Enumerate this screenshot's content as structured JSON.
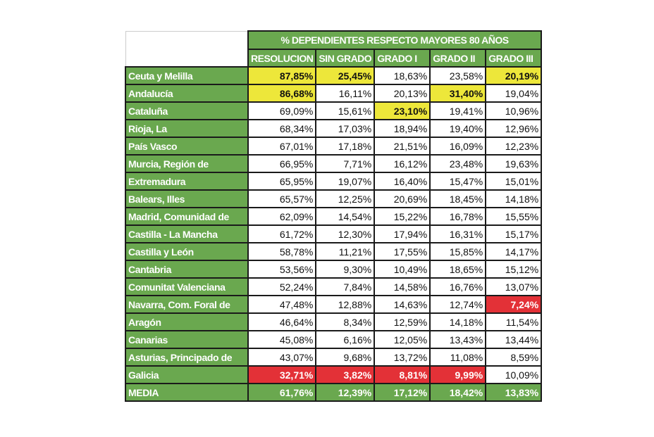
{
  "table": {
    "title": "% DEPENDIENTES RESPECTO MAYORES 80 AÑOS",
    "columns": [
      "RESOLUCION",
      "SIN GRADO",
      "GRADO I",
      "GRADO II",
      "GRADO III"
    ],
    "highlight_colors": {
      "yellow": "#ede73a",
      "red": "#e33137",
      "header_green": "#6aa84f"
    },
    "rows": [
      {
        "label": "Ceuta y Melilla",
        "values": [
          "87,85%",
          "25,45%",
          "18,63%",
          "23,58%",
          "20,19%"
        ],
        "highlight": [
          "yellow",
          "yellow",
          "",
          "",
          "yellow"
        ]
      },
      {
        "label": "Andalucía",
        "values": [
          "86,68%",
          "16,11%",
          "20,13%",
          "31,40%",
          "19,04%"
        ],
        "highlight": [
          "yellow",
          "",
          "",
          "yellow",
          ""
        ]
      },
      {
        "label": "Cataluña",
        "values": [
          "69,09%",
          "15,61%",
          "23,10%",
          "19,41%",
          "10,96%"
        ],
        "highlight": [
          "",
          "",
          "yellow",
          "",
          ""
        ]
      },
      {
        "label": "Rioja, La",
        "values": [
          "68,34%",
          "17,03%",
          "18,94%",
          "19,40%",
          "12,96%"
        ],
        "highlight": [
          "",
          "",
          "",
          "",
          ""
        ]
      },
      {
        "label": "País Vasco",
        "values": [
          "67,01%",
          "17,18%",
          "21,51%",
          "16,09%",
          "12,23%"
        ],
        "highlight": [
          "",
          "",
          "",
          "",
          ""
        ]
      },
      {
        "label": "Murcia, Región de",
        "values": [
          "66,95%",
          "7,71%",
          "16,12%",
          "23,48%",
          "19,63%"
        ],
        "highlight": [
          "",
          "",
          "",
          "",
          ""
        ]
      },
      {
        "label": "Extremadura",
        "values": [
          "65,95%",
          "19,07%",
          "16,40%",
          "15,47%",
          "15,01%"
        ],
        "highlight": [
          "",
          "",
          "",
          "",
          ""
        ]
      },
      {
        "label": "Balears, Illes",
        "values": [
          "65,57%",
          "12,25%",
          "20,69%",
          "18,45%",
          "14,18%"
        ],
        "highlight": [
          "",
          "",
          "",
          "",
          ""
        ]
      },
      {
        "label": "Madrid, Comunidad de",
        "values": [
          "62,09%",
          "14,54%",
          "15,22%",
          "16,78%",
          "15,55%"
        ],
        "highlight": [
          "",
          "",
          "",
          "",
          ""
        ]
      },
      {
        "label": "Castilla - La Mancha",
        "values": [
          "61,72%",
          "12,30%",
          "17,94%",
          "16,31%",
          "15,17%"
        ],
        "highlight": [
          "",
          "",
          "",
          "",
          ""
        ]
      },
      {
        "label": "Castilla y León",
        "values": [
          "58,78%",
          "11,21%",
          "17,55%",
          "15,85%",
          "14,17%"
        ],
        "highlight": [
          "",
          "",
          "",
          "",
          ""
        ]
      },
      {
        "label": "Cantabria",
        "values": [
          "53,56%",
          "9,30%",
          "10,49%",
          "18,65%",
          "15,12%"
        ],
        "highlight": [
          "",
          "",
          "",
          "",
          ""
        ]
      },
      {
        "label": "Comunitat Valenciana",
        "values": [
          "52,24%",
          "7,84%",
          "14,58%",
          "16,76%",
          "13,07%"
        ],
        "highlight": [
          "",
          "",
          "",
          "",
          ""
        ]
      },
      {
        "label": "Navarra, Com. Foral de",
        "values": [
          "47,48%",
          "12,88%",
          "14,63%",
          "12,74%",
          "7,24%"
        ],
        "highlight": [
          "",
          "",
          "",
          "",
          "red"
        ]
      },
      {
        "label": "Aragón",
        "values": [
          "46,64%",
          "8,34%",
          "12,59%",
          "14,18%",
          "11,54%"
        ],
        "highlight": [
          "",
          "",
          "",
          "",
          ""
        ]
      },
      {
        "label": "Canarias",
        "values": [
          "45,08%",
          "6,16%",
          "12,05%",
          "13,43%",
          "13,44%"
        ],
        "highlight": [
          "",
          "",
          "",
          "",
          ""
        ]
      },
      {
        "label": "Asturias, Principado de",
        "values": [
          "43,07%",
          "9,68%",
          "13,72%",
          "11,08%",
          "8,59%"
        ],
        "highlight": [
          "",
          "",
          "",
          "",
          ""
        ]
      },
      {
        "label": "Galicia",
        "values": [
          "32,71%",
          "3,82%",
          "8,81%",
          "9,99%",
          "10,09%"
        ],
        "highlight": [
          "red",
          "red",
          "red",
          "red",
          ""
        ]
      }
    ],
    "media": {
      "label": "MEDIA",
      "values": [
        "61,76%",
        "12,39%",
        "17,12%",
        "18,42%",
        "13,83%"
      ]
    }
  }
}
